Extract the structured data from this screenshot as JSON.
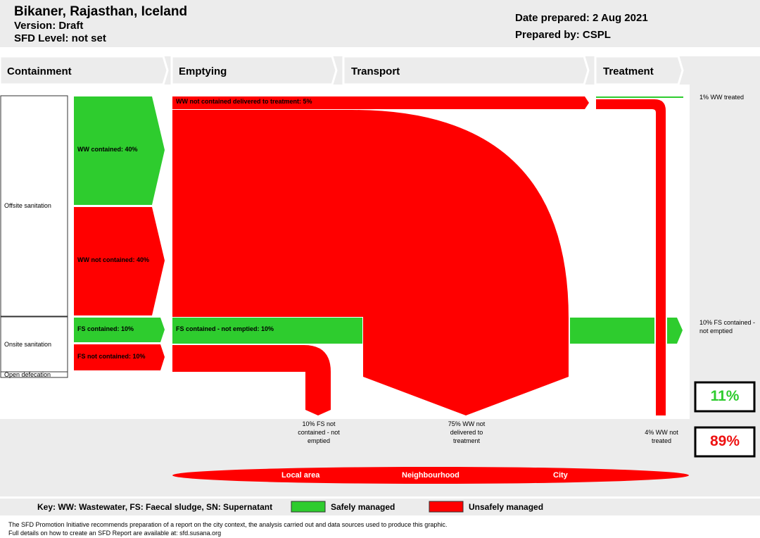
{
  "header": {
    "city": "Bikaner, Rajasthan, Iceland",
    "version": "Version: Draft",
    "sfd_level": "SFD Level: not set",
    "date": "Date prepared: 2 Aug 2021",
    "prepared_by": "Prepared by: CSPL"
  },
  "stages": [
    "Containment",
    "Emptying",
    "Transport",
    "Treatment"
  ],
  "categories": {
    "offsite": "Offsite sanitation",
    "onsite": "Onsite sanitation",
    "open": "Open defecation"
  },
  "flows": {
    "ww_contained": "WW contained: 40%",
    "ww_not_contained": "WW not contained: 40%",
    "fs_contained": "FS contained: 10%",
    "fs_not_contained": "FS not contained: 10%",
    "ww_nc_delivered": "WW not contained delivered to treatment: 5%",
    "fs_contained_not_emptied": "FS contained - not emptied: 10%"
  },
  "outcomes": {
    "ww_treated": "1% WW treated",
    "fs_not_emptied_side": "10% FS contained - not emptied",
    "fs_not_contained_bottom": "10% FS not contained - not emptied",
    "ww_not_delivered_bottom": "75% WW not delivered to treatment",
    "ww_not_treated_bottom": "4% WW not treated"
  },
  "totals": {
    "safe": "11%",
    "unsafe": "89%",
    "safe_color": "#2ecc2e",
    "unsafe_color": "#ee1111"
  },
  "areas": [
    "Local area",
    "Neighbourhood",
    "City"
  ],
  "key": {
    "text": "Key: WW: Wastewater, FS: Faecal sludge, SN: Supernatant",
    "safe": "Safely managed",
    "unsafe": "Unsafely managed"
  },
  "footer": {
    "line1": "The SFD Promotion Initiative recommends preparation of a report on the city context, the analysis carried out and data sources used to produce this graphic.",
    "line2": "Full details on how to create an SFD Report are available at: sfd.susana.org"
  }
}
